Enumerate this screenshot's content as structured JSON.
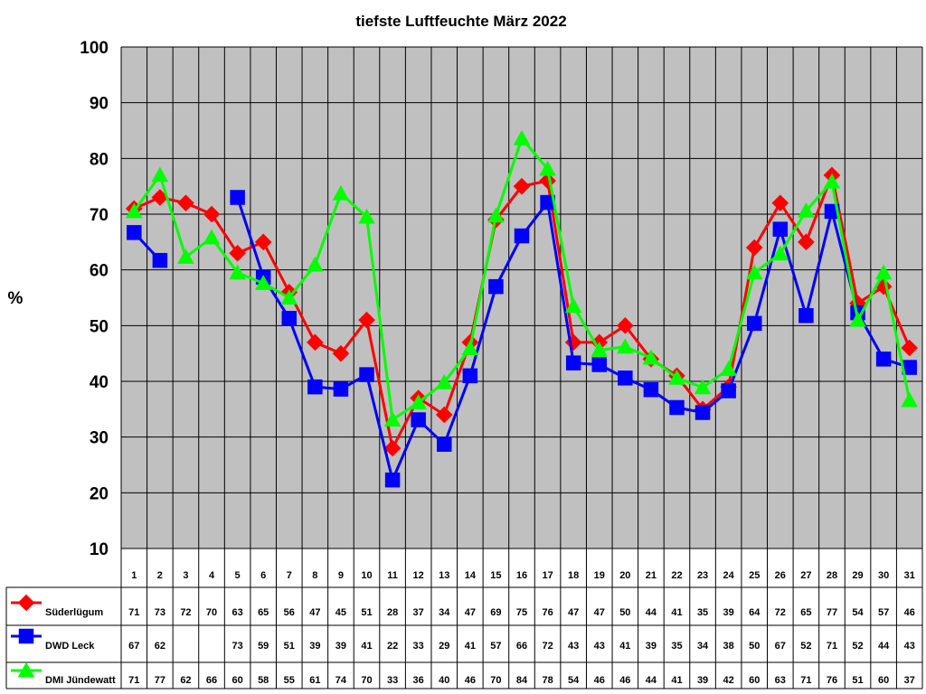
{
  "chart_data": {
    "type": "line",
    "title": "tiefste Luftfeuchte März 2022",
    "ylabel": "%",
    "xlabel": "",
    "ylim": [
      10,
      100
    ],
    "yticks": [
      10,
      20,
      30,
      40,
      50,
      60,
      70,
      80,
      90,
      100
    ],
    "grid": true,
    "legend": "table-left",
    "categories": [
      "1",
      "2",
      "3",
      "4",
      "5",
      "6",
      "7",
      "8",
      "9",
      "10",
      "11",
      "12",
      "13",
      "14",
      "15",
      "16",
      "17",
      "18",
      "19",
      "20",
      "21",
      "22",
      "23",
      "24",
      "25",
      "26",
      "27",
      "28",
      "29",
      "30",
      "31"
    ],
    "series": [
      {
        "name": "Süderlügum",
        "color": "#ff0000",
        "marker": "diamond",
        "values": [
          71,
          73,
          72,
          70,
          63,
          65,
          56,
          47,
          45,
          51,
          28,
          37,
          34,
          47,
          69,
          75,
          76,
          47,
          47,
          50,
          44,
          41,
          35,
          39,
          64,
          72,
          65,
          77,
          54,
          57,
          46
        ],
        "labels": [
          "71",
          "73",
          "72",
          "70",
          "63",
          "65",
          "56",
          "47",
          "45",
          "51",
          "28",
          "37",
          "34",
          "47",
          "69",
          "75",
          "76",
          "47",
          "47",
          "50",
          "44",
          "41",
          "35",
          "39",
          "64",
          "72",
          "65",
          "77",
          "54",
          "57",
          "46"
        ]
      },
      {
        "name": "DWD Leck",
        "color": "#0000ff",
        "marker": "square",
        "values": [
          66.7,
          61.7,
          null,
          null,
          73,
          58.7,
          51.3,
          39,
          38.6,
          41.2,
          22.3,
          33.1,
          28.7,
          41,
          57,
          66.1,
          72.1,
          43.3,
          43,
          40.6,
          38.5,
          35.3,
          34.4,
          38.3,
          50.4,
          67.3,
          51.8,
          70.5,
          52.3,
          44,
          42.5
        ],
        "labels": [
          "67",
          "62",
          "",
          "",
          "73",
          "59",
          "51",
          "39",
          "39",
          "41",
          "22",
          "33",
          "29",
          "41",
          "57",
          "66",
          "72",
          "43",
          "43",
          "41",
          "39",
          "35",
          "34",
          "38",
          "50",
          "67",
          "52",
          "71",
          "52",
          "44",
          "43"
        ]
      },
      {
        "name": "DMI Jündewatt",
        "color": "#00ff00",
        "marker": "triangle",
        "values": [
          70.5,
          77,
          62.3,
          65.8,
          59.5,
          57.6,
          55,
          60.9,
          73.7,
          69.5,
          33.1,
          36.2,
          39.8,
          45.9,
          69.7,
          83.6,
          78.1,
          53.5,
          45.6,
          46.2,
          44.2,
          40.6,
          38.9,
          42.2,
          59.5,
          62.9,
          70.6,
          75.8,
          51,
          59.5,
          36.6
        ],
        "labels": [
          "71",
          "77",
          "62",
          "66",
          "60",
          "58",
          "55",
          "61",
          "74",
          "70",
          "33",
          "36",
          "40",
          "46",
          "70",
          "84",
          "78",
          "54",
          "46",
          "46",
          "44",
          "41",
          "39",
          "42",
          "60",
          "63",
          "71",
          "76",
          "51",
          "60",
          "37"
        ]
      }
    ]
  }
}
